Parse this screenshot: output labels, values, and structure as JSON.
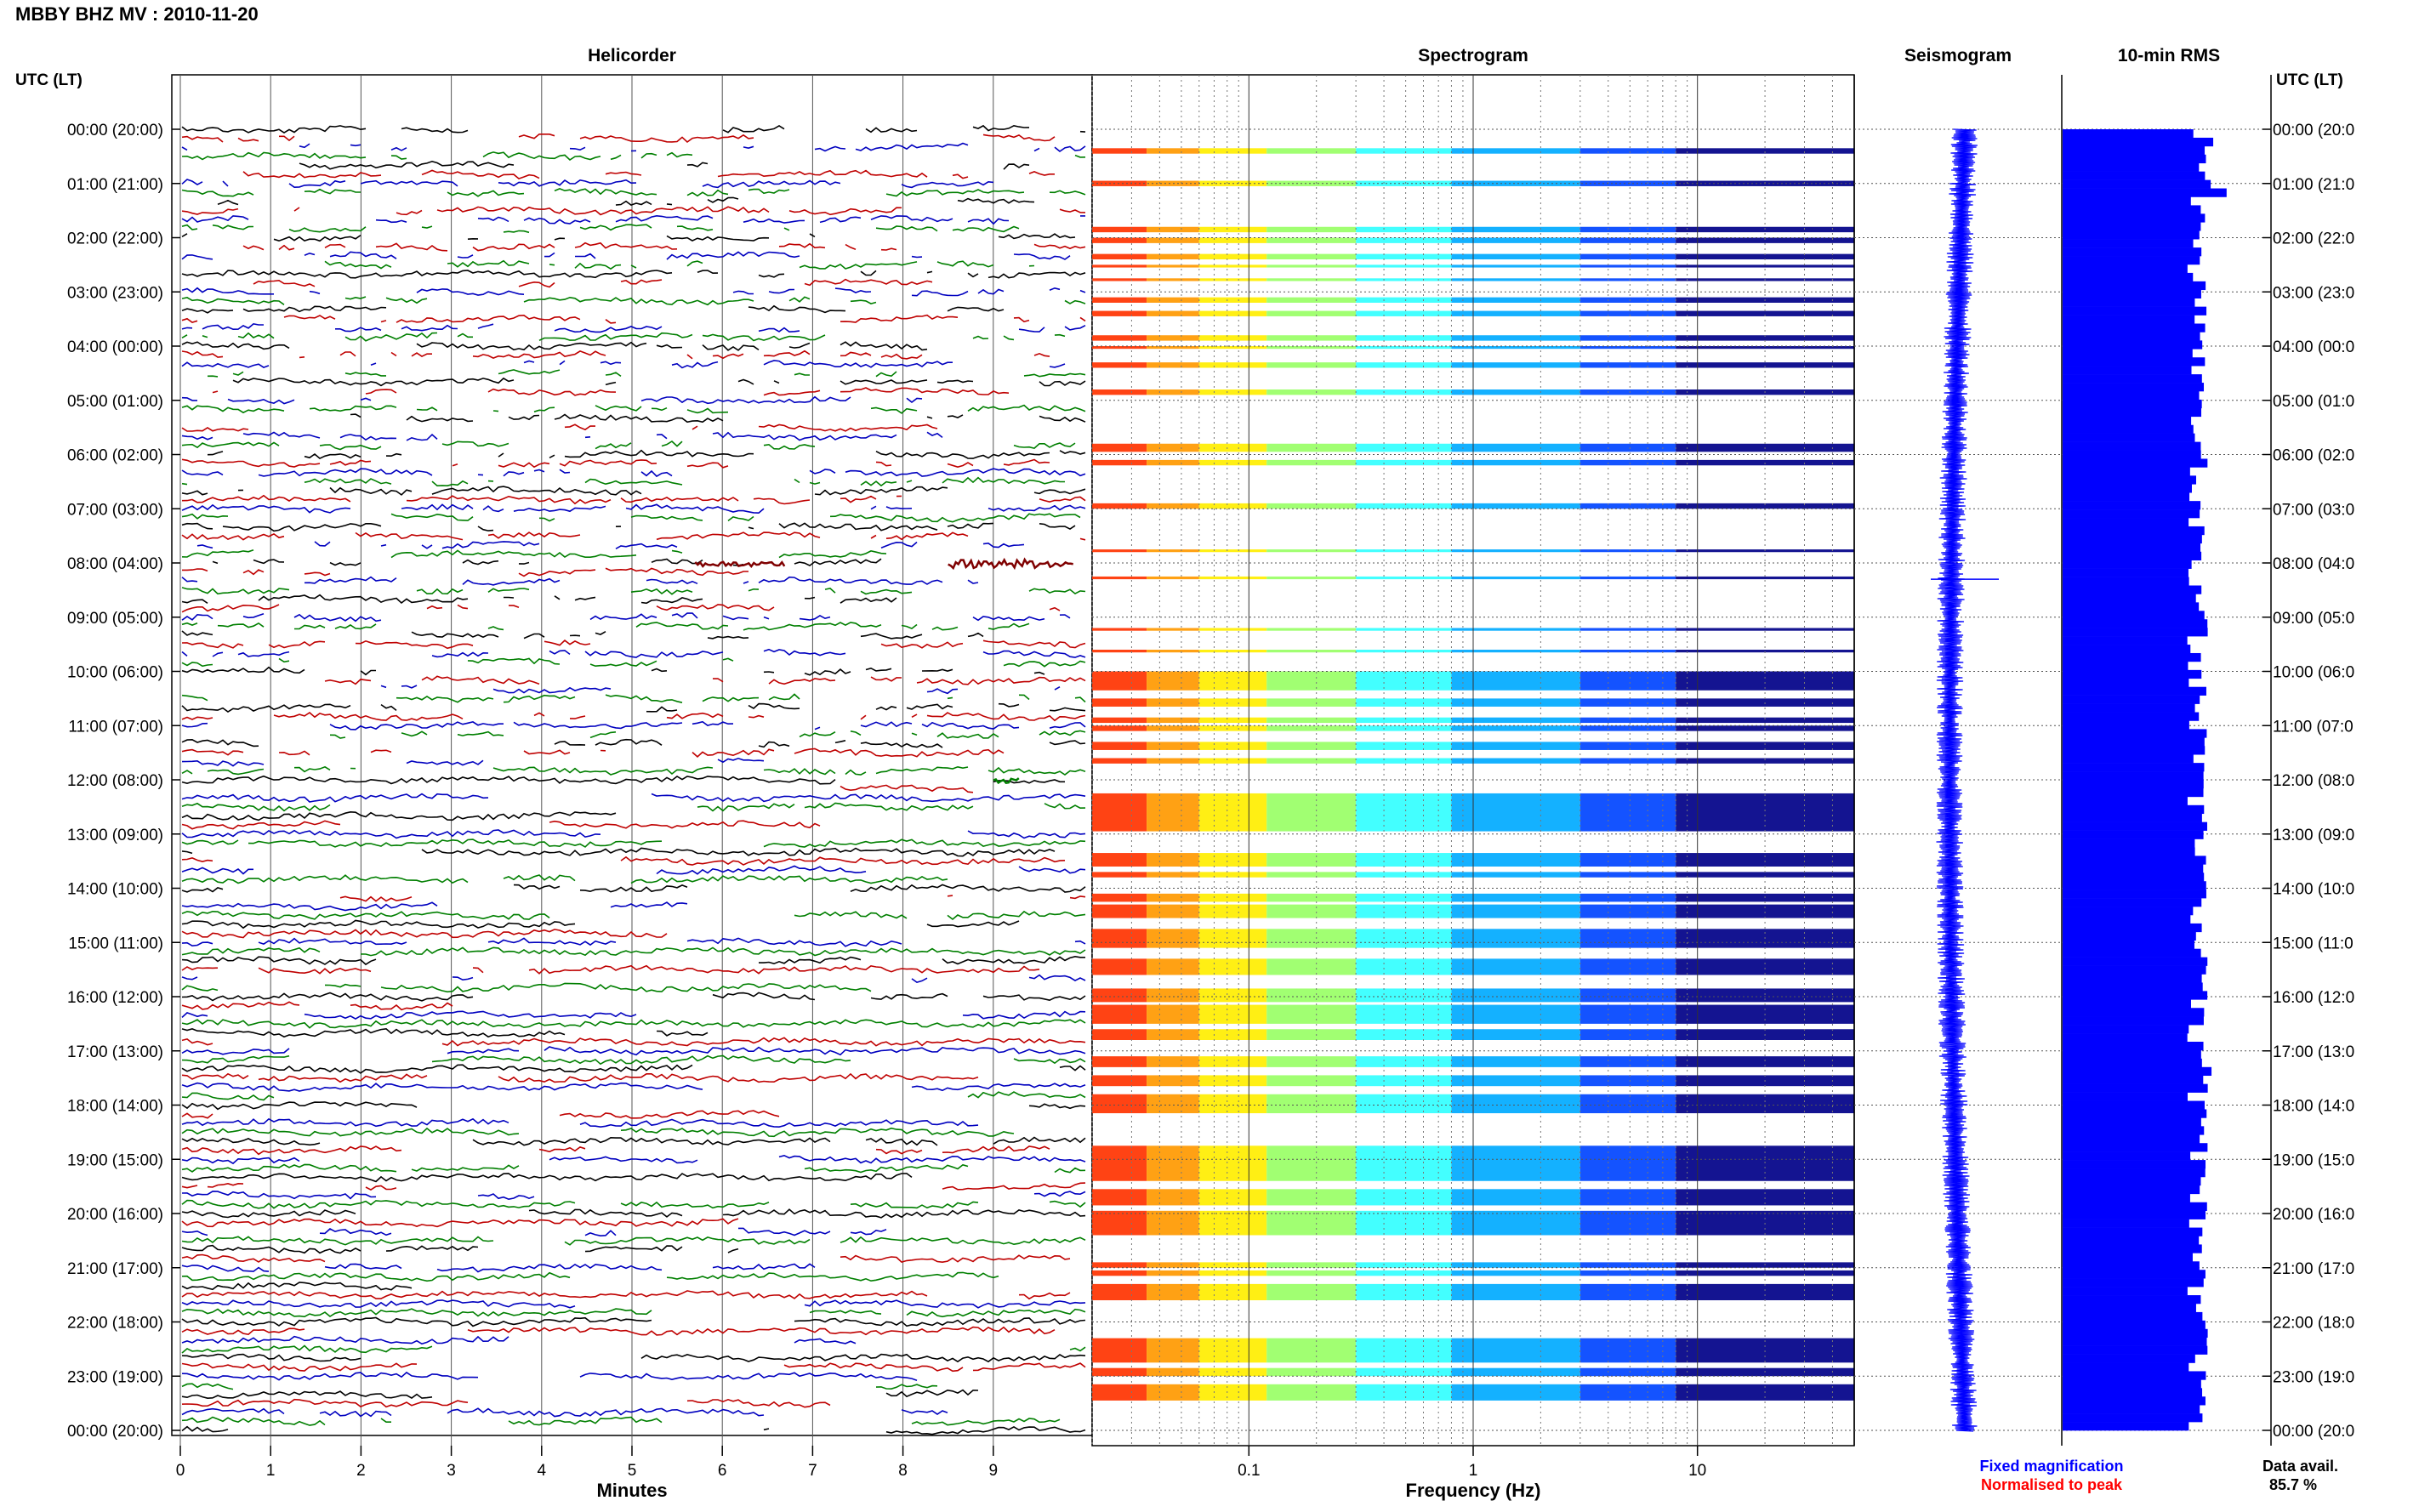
{
  "header": {
    "title": "MBBY BHZ MV : 2010-11-20",
    "utc_label_left": "UTC (LT)",
    "utc_label_right": "UTC (LT)"
  },
  "panels": {
    "helicorder": "Helicorder",
    "spectrogram": "Spectrogram",
    "seismogram": "Seismogram",
    "rms": "10-min RMS"
  },
  "legend": {
    "fixed": "Fixed magnification",
    "normalised": "Normalised to peak",
    "fixed_color": "#0000ff",
    "normalised_color": "#ff0000"
  },
  "data_availability": {
    "label": "Data avail.",
    "value": "85.7 %"
  },
  "chart_data": [
    {
      "type": "line",
      "name": "helicorder",
      "xlabel": "Minutes",
      "xlim": [
        0,
        10
      ],
      "x_ticks": [
        "0",
        "1",
        "2",
        "3",
        "4",
        "5",
        "6",
        "7",
        "8",
        "9"
      ],
      "trace_colors": [
        "#000000",
        "#bf0000",
        "#0000bf",
        "#007f00"
      ],
      "traces_per_hour": 6,
      "hours": 24,
      "events": [
        {
          "hour_row": 8,
          "minute_start": 8.5,
          "minute_end": 9.9,
          "color": "#7f0000"
        },
        {
          "hour_row": 8,
          "minute_start": 5.7,
          "minute_end": 6.7,
          "color": "#7f0000"
        },
        {
          "hour_row": 12,
          "minute_start": 9.0,
          "minute_end": 9.3,
          "color": "#007f00"
        }
      ]
    },
    {
      "type": "heatmap",
      "name": "spectrogram",
      "xlabel": "Frequency (Hz)",
      "x_scale": "log",
      "xlim": [
        0.02,
        50
      ],
      "x_ticks": [
        "0.1",
        "1",
        "10"
      ],
      "colormap": [
        "#ff3300",
        "#ff9900",
        "#ffee00",
        "#99ff66",
        "#33ffff",
        "#00aaff",
        "#0044ff",
        "#000088"
      ],
      "active_blocks_hours": [
        [
          0.35,
          0.45
        ],
        [
          0.95,
          1.05
        ],
        [
          1.8,
          1.9
        ],
        [
          2.0,
          2.1
        ],
        [
          2.3,
          2.4
        ],
        [
          2.5,
          2.55
        ],
        [
          2.75,
          2.8
        ],
        [
          3.1,
          3.2
        ],
        [
          3.35,
          3.45
        ],
        [
          3.8,
          3.9
        ],
        [
          4.0,
          4.05
        ],
        [
          4.3,
          4.4
        ],
        [
          4.8,
          4.9
        ],
        [
          5.8,
          5.95
        ],
        [
          6.1,
          6.2
        ],
        [
          6.9,
          7.0
        ],
        [
          7.75,
          7.8
        ],
        [
          8.25,
          8.3
        ],
        [
          9.2,
          9.25
        ],
        [
          9.6,
          9.65
        ],
        [
          10.0,
          10.35
        ],
        [
          10.5,
          10.65
        ],
        [
          10.85,
          10.95
        ],
        [
          11.0,
          11.1
        ],
        [
          11.3,
          11.45
        ],
        [
          11.6,
          11.7
        ],
        [
          12.25,
          12.95
        ],
        [
          13.35,
          13.6
        ],
        [
          13.7,
          13.8
        ],
        [
          14.1,
          14.25
        ],
        [
          14.3,
          14.55
        ],
        [
          14.75,
          15.1
        ],
        [
          15.3,
          15.6
        ],
        [
          15.85,
          16.1
        ],
        [
          16.15,
          16.5
        ],
        [
          16.6,
          16.8
        ],
        [
          17.1,
          17.3
        ],
        [
          17.45,
          17.65
        ],
        [
          17.8,
          18.15
        ],
        [
          18.75,
          19.4
        ],
        [
          19.55,
          19.85
        ],
        [
          19.95,
          20.4
        ],
        [
          20.9,
          21.0
        ],
        [
          21.05,
          21.15
        ],
        [
          21.3,
          21.6
        ],
        [
          22.3,
          22.75
        ],
        [
          22.85,
          23.0
        ],
        [
          23.15,
          23.45
        ]
      ]
    },
    {
      "type": "line",
      "name": "seismogram",
      "color": "#0000ff",
      "hours": 24
    },
    {
      "type": "bar",
      "name": "10-min RMS",
      "orientation": "horizontal",
      "color": "#0000ff",
      "values": [
        3,
        5,
        4,
        4,
        4,
        4,
        5,
        6,
        3,
        4,
        4,
        4,
        4,
        3,
        4,
        4,
        3,
        3,
        4,
        4,
        3,
        4,
        3,
        4,
        4,
        4,
        3,
        4,
        3,
        4,
        4,
        4,
        4,
        4,
        3,
        3,
        3,
        4,
        4,
        4,
        3,
        3,
        3,
        3,
        4,
        4,
        3,
        4,
        4,
        4,
        4,
        3,
        3,
        3,
        4,
        3,
        4,
        4,
        4,
        4,
        3,
        3,
        4,
        3,
        4,
        3,
        4,
        4,
        3,
        4,
        3,
        4,
        4,
        4,
        3,
        4,
        4,
        4,
        4,
        3,
        4,
        4,
        4,
        4,
        3,
        3,
        4,
        4,
        4,
        4,
        4,
        4,
        3,
        3,
        4,
        3,
        3,
        4,
        4,
        4,
        4,
        4,
        4,
        3,
        4,
        4,
        3,
        3,
        4,
        4,
        4,
        5,
        4,
        4,
        3,
        4,
        4,
        4,
        4,
        4,
        4,
        3,
        4,
        4,
        4,
        4,
        3,
        4,
        4,
        3,
        4,
        4,
        4,
        3,
        4,
        4,
        4,
        3,
        4,
        3,
        4,
        4,
        4,
        4,
        4,
        3,
        3,
        4,
        4,
        4,
        4,
        4,
        4,
        3
      ],
      "xlim": [
        0,
        10
      ]
    }
  ],
  "hour_labels": [
    "00:00 (20:00)",
    "01:00 (21:00)",
    "02:00 (22:00)",
    "03:00 (23:00)",
    "04:00 (00:00)",
    "05:00 (01:00)",
    "06:00 (02:00)",
    "07:00 (03:00)",
    "08:00 (04:00)",
    "09:00 (05:00)",
    "10:00 (06:00)",
    "11:00 (07:00)",
    "12:00 (08:00)",
    "13:00 (09:00)",
    "14:00 (10:00)",
    "15:00 (11:00)",
    "16:00 (12:00)",
    "17:00 (13:00)",
    "18:00 (14:00)",
    "19:00 (15:00)",
    "20:00 (16:00)",
    "21:00 (17:00)",
    "22:00 (18:00)",
    "23:00 (19:00)",
    "00:00 (20:00)"
  ],
  "hour_labels_right": [
    "00:00 (20:0",
    "01:00 (21:0",
    "02:00 (22:0",
    "03:00 (23:0",
    "04:00 (00:0",
    "05:00 (01:0",
    "06:00 (02:0",
    "07:00 (03:0",
    "08:00 (04:0",
    "09:00 (05:0",
    "10:00 (06:0",
    "11:00 (07:0",
    "12:00 (08:0",
    "13:00 (09:0",
    "14:00 (10:0",
    "15:00 (11:0",
    "16:00 (12:0",
    "17:00 (13:0",
    "18:00 (14:0",
    "19:00 (15:0",
    "20:00 (16:0",
    "21:00 (17:0",
    "22:00 (18:0",
    "23:00 (19:0",
    "00:00 (20:0"
  ]
}
